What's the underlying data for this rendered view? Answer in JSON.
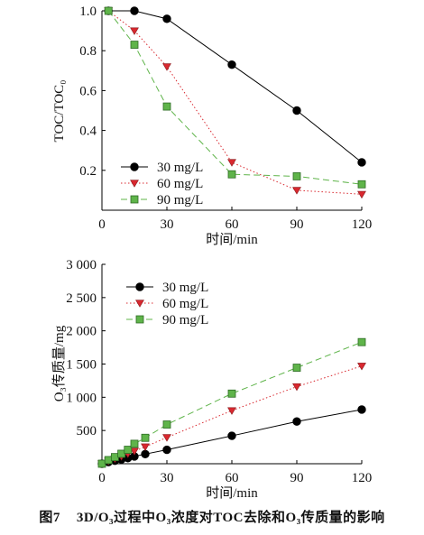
{
  "caption": {
    "number": "图7",
    "text": "3D/O₃过程中O₃浓度对TOC去除和O₃传质量的影响"
  },
  "chart_data": [
    {
      "type": "line",
      "xlabel": "时间/min",
      "ylabel": "TOC/TOC₀",
      "xlim": [
        0,
        120
      ],
      "ylim": [
        0,
        1.0
      ],
      "xticks": [
        "0",
        "30",
        "60",
        "90",
        "120"
      ],
      "yticks": [
        "0.2",
        "0.4",
        "0.6",
        "0.8",
        "1.0"
      ],
      "grid": false,
      "legend_position": "bottom-left",
      "series": [
        {
          "name": "30 mg/L",
          "marker": "circle",
          "color": "#000000",
          "line": "solid",
          "x": [
            3,
            15,
            30,
            60,
            90,
            120
          ],
          "y": [
            1.0,
            1.0,
            0.96,
            0.73,
            0.5,
            0.24
          ]
        },
        {
          "name": "60 mg/L",
          "marker": "triangle-down",
          "color": "#d9282f",
          "line": "dotted",
          "x": [
            3,
            15,
            30,
            60,
            90,
            120
          ],
          "y": [
            1.0,
            0.9,
            0.72,
            0.24,
            0.1,
            0.08
          ]
        },
        {
          "name": "90 mg/L",
          "marker": "square",
          "color": "#5fb44a",
          "line": "dashed",
          "x": [
            3,
            15,
            30,
            60,
            90,
            120
          ],
          "y": [
            1.0,
            0.83,
            0.52,
            0.18,
            0.17,
            0.13
          ]
        }
      ]
    },
    {
      "type": "line",
      "xlabel": "时间/min",
      "ylabel": "O₃传质量/mg",
      "xlim": [
        0,
        120
      ],
      "ylim": [
        0,
        3000
      ],
      "xticks": [
        "0",
        "30",
        "60",
        "90",
        "120"
      ],
      "yticks": [
        "500",
        "1 000",
        "1 500",
        "2 000",
        "2 500",
        "3 000"
      ],
      "grid": false,
      "legend_position": "top-left",
      "series": [
        {
          "name": "30 mg/L",
          "marker": "circle",
          "color": "#000000",
          "line": "solid",
          "x": [
            0,
            3,
            6,
            9,
            12,
            15,
            20,
            30,
            60,
            90,
            120
          ],
          "y": [
            0,
            25,
            45,
            65,
            85,
            110,
            145,
            210,
            420,
            635,
            815
          ]
        },
        {
          "name": "60 mg/L",
          "marker": "triangle-down",
          "color": "#d9282f",
          "line": "dotted",
          "x": [
            0,
            3,
            6,
            9,
            12,
            15,
            20,
            30,
            60,
            90,
            120
          ],
          "y": [
            0,
            40,
            75,
            110,
            150,
            190,
            255,
            395,
            800,
            1160,
            1470
          ]
        },
        {
          "name": "90 mg/L",
          "marker": "square",
          "color": "#5fb44a",
          "line": "dashed",
          "x": [
            0,
            3,
            6,
            9,
            12,
            15,
            20,
            30,
            60,
            90,
            120
          ],
          "y": [
            0,
            55,
            100,
            150,
            210,
            300,
            390,
            590,
            1055,
            1445,
            1830
          ]
        }
      ]
    }
  ]
}
